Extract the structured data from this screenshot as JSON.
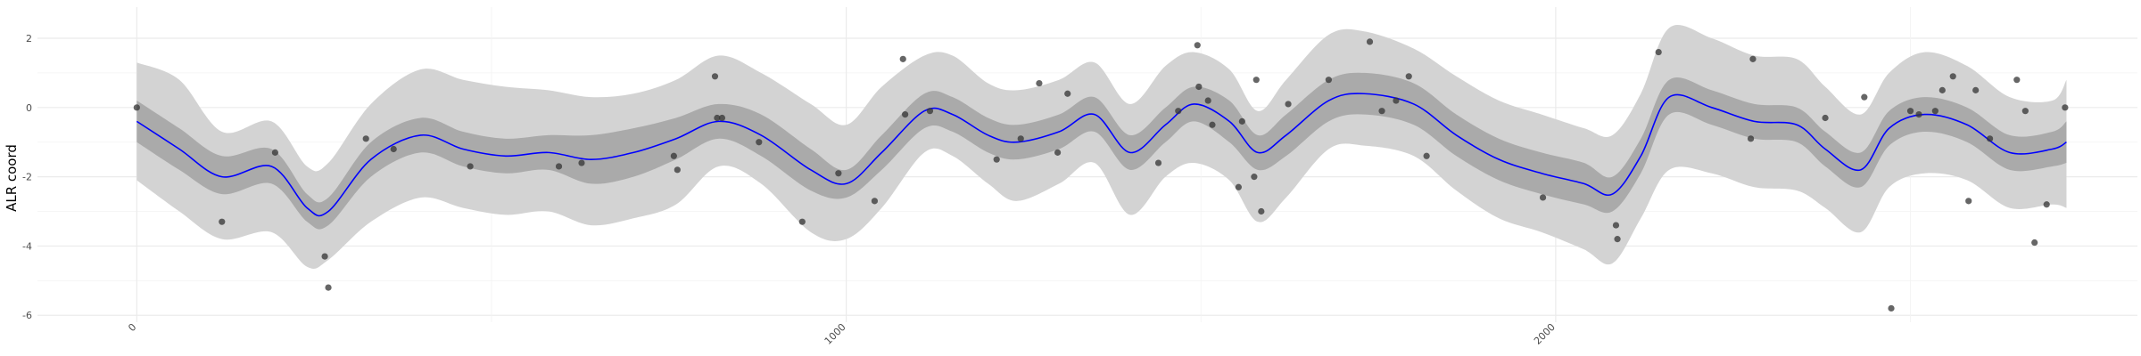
{
  "chart_data": {
    "type": "line",
    "title": "",
    "xlabel": "",
    "ylabel": "ALR coord",
    "xlim": [
      -140,
      2820
    ],
    "ylim": [
      -6.2,
      2.9
    ],
    "x_ticks": [
      0,
      1000,
      2000
    ],
    "x_tick_labels": [
      "0",
      "1000",
      "2000"
    ],
    "y_ticks": [
      -6,
      -4,
      -2,
      0,
      2
    ],
    "y_tick_labels": [
      "-6",
      "-4",
      "-2",
      "0",
      "2"
    ],
    "grid": true,
    "legend": "none",
    "colors": {
      "line": "#0000ff",
      "inner_band": "#aaaaaa",
      "outer_band": "#d3d3d3",
      "points": "#333333",
      "grid_major": "#ebebeb",
      "grid_minor": "#f3f3f3"
    },
    "fit": {
      "x": [
        0,
        60,
        120,
        190,
        240,
        270,
        330,
        400,
        460,
        520,
        580,
        640,
        700,
        760,
        820,
        880,
        950,
        1000,
        1050,
        1110,
        1150,
        1200,
        1240,
        1300,
        1350,
        1400,
        1450,
        1490,
        1540,
        1580,
        1620,
        1680,
        1730,
        1800,
        1860,
        1920,
        1980,
        2040,
        2080,
        2120,
        2160,
        2220,
        2280,
        2340,
        2380,
        2430,
        2470,
        2520,
        2580,
        2640,
        2700,
        2720
      ],
      "mean": [
        -0.4,
        -1.2,
        -2.0,
        -1.7,
        -2.9,
        -3.0,
        -1.5,
        -0.8,
        -1.2,
        -1.4,
        -1.3,
        -1.5,
        -1.3,
        -0.9,
        -0.4,
        -0.8,
        -1.8,
        -2.2,
        -1.3,
        -0.1,
        -0.2,
        -0.8,
        -1.0,
        -0.7,
        -0.2,
        -1.3,
        -0.5,
        0.1,
        -0.4,
        -1.3,
        -0.8,
        0.2,
        0.4,
        0.1,
        -0.8,
        -1.5,
        -1.9,
        -2.2,
        -2.5,
        -1.4,
        0.3,
        0.0,
        -0.4,
        -0.5,
        -1.2,
        -1.8,
        -0.6,
        -0.2,
        -0.5,
        -1.3,
        -1.2,
        -1.0
      ],
      "inner_lo": [
        -1.0,
        -1.8,
        -2.5,
        -2.2,
        -3.3,
        -3.4,
        -2.0,
        -1.3,
        -1.7,
        -1.9,
        -1.8,
        -2.2,
        -2.0,
        -1.5,
        -0.9,
        -1.4,
        -2.4,
        -2.6,
        -1.8,
        -0.6,
        -0.7,
        -1.3,
        -1.5,
        -1.2,
        -0.7,
        -1.8,
        -1.0,
        -0.4,
        -1.0,
        -1.8,
        -1.4,
        -0.4,
        -0.2,
        -0.5,
        -1.4,
        -2.1,
        -2.5,
        -2.8,
        -3.0,
        -1.9,
        -0.2,
        -0.5,
        -0.9,
        -1.0,
        -1.7,
        -2.3,
        -1.1,
        -0.7,
        -1.0,
        -1.8,
        -1.7,
        -1.6
      ],
      "inner_hi": [
        0.2,
        -0.6,
        -1.4,
        -1.2,
        -2.5,
        -2.6,
        -1.0,
        -0.3,
        -0.7,
        -0.9,
        -0.8,
        -0.8,
        -0.6,
        -0.3,
        0.1,
        -0.2,
        -1.2,
        -1.8,
        -0.8,
        0.4,
        0.3,
        -0.3,
        -0.5,
        -0.2,
        0.3,
        -0.8,
        0.0,
        0.6,
        0.2,
        -0.8,
        -0.2,
        0.8,
        1.0,
        0.7,
        -0.2,
        -0.9,
        -1.3,
        -1.6,
        -2.0,
        -0.9,
        0.8,
        0.5,
        0.1,
        0.0,
        -0.7,
        -1.3,
        -0.1,
        0.3,
        0.0,
        -0.8,
        -0.7,
        -0.4
      ],
      "outer_lo": [
        -2.1,
        -3.0,
        -3.8,
        -3.6,
        -4.6,
        -4.4,
        -3.3,
        -2.6,
        -2.9,
        -3.1,
        -3.0,
        -3.4,
        -3.2,
        -2.8,
        -1.7,
        -2.2,
        -3.6,
        -3.8,
        -2.9,
        -1.3,
        -1.4,
        -2.2,
        -2.7,
        -2.2,
        -1.6,
        -3.1,
        -2.0,
        -1.6,
        -2.1,
        -3.3,
        -2.6,
        -1.2,
        -1.1,
        -1.4,
        -2.4,
        -3.2,
        -3.6,
        -4.1,
        -4.5,
        -3.2,
        -1.8,
        -1.9,
        -2.3,
        -2.4,
        -2.9,
        -3.6,
        -2.3,
        -1.9,
        -2.1,
        -2.9,
        -2.8,
        -2.9
      ],
      "outer_hi": [
        1.3,
        0.8,
        -0.7,
        -0.4,
        -1.7,
        -1.6,
        0.1,
        1.1,
        0.8,
        0.6,
        0.5,
        0.3,
        0.4,
        0.8,
        1.5,
        1.0,
        0.1,
        -0.5,
        0.6,
        1.5,
        1.5,
        0.7,
        0.5,
        0.8,
        1.3,
        0.1,
        1.2,
        1.6,
        1.1,
        -0.1,
        0.8,
        2.1,
        2.2,
        1.7,
        0.9,
        0.2,
        -0.2,
        -0.6,
        -0.8,
        0.4,
        2.3,
        2.0,
        1.5,
        1.4,
        0.6,
        -0.2,
        1.0,
        1.6,
        1.2,
        0.3,
        0.2,
        0.8
      ]
    },
    "points": [
      {
        "x": 0,
        "y": 0.0
      },
      {
        "x": 120,
        "y": -3.3
      },
      {
        "x": 195,
        "y": -1.3
      },
      {
        "x": 265,
        "y": -4.3
      },
      {
        "x": 270,
        "y": -5.2
      },
      {
        "x": 323,
        "y": -0.9
      },
      {
        "x": 362,
        "y": -1.2
      },
      {
        "x": 470,
        "y": -1.7
      },
      {
        "x": 595,
        "y": -1.7
      },
      {
        "x": 627,
        "y": -1.6
      },
      {
        "x": 757,
        "y": -1.4
      },
      {
        "x": 762,
        "y": -1.8
      },
      {
        "x": 815,
        "y": 0.9
      },
      {
        "x": 818,
        "y": -0.3
      },
      {
        "x": 825,
        "y": -0.3
      },
      {
        "x": 877,
        "y": -1.0
      },
      {
        "x": 938,
        "y": -3.3
      },
      {
        "x": 989,
        "y": -1.9
      },
      {
        "x": 1040,
        "y": -2.7
      },
      {
        "x": 1080,
        "y": 1.4
      },
      {
        "x": 1083,
        "y": -0.2
      },
      {
        "x": 1118,
        "y": -0.1
      },
      {
        "x": 1212,
        "y": -1.5
      },
      {
        "x": 1246,
        "y": -0.9
      },
      {
        "x": 1272,
        "y": 0.7
      },
      {
        "x": 1298,
        "y": -1.3
      },
      {
        "x": 1312,
        "y": 0.4
      },
      {
        "x": 1440,
        "y": -1.6
      },
      {
        "x": 1468,
        "y": -0.1
      },
      {
        "x": 1495,
        "y": 1.8
      },
      {
        "x": 1497,
        "y": 0.6
      },
      {
        "x": 1510,
        "y": 0.2
      },
      {
        "x": 1516,
        "y": -0.5
      },
      {
        "x": 1553,
        "y": -2.3
      },
      {
        "x": 1558,
        "y": -0.4
      },
      {
        "x": 1575,
        "y": -2.0
      },
      {
        "x": 1578,
        "y": 0.8
      },
      {
        "x": 1585,
        "y": -3.0
      },
      {
        "x": 1623,
        "y": 0.1
      },
      {
        "x": 1680,
        "y": 0.8
      },
      {
        "x": 1738,
        "y": 1.9
      },
      {
        "x": 1755,
        "y": -0.1
      },
      {
        "x": 1775,
        "y": 0.2
      },
      {
        "x": 1793,
        "y": 0.9
      },
      {
        "x": 1818,
        "y": -1.4
      },
      {
        "x": 1982,
        "y": -2.6
      },
      {
        "x": 2085,
        "y": -3.4
      },
      {
        "x": 2087,
        "y": -3.8
      },
      {
        "x": 2145,
        "y": 1.6
      },
      {
        "x": 2275,
        "y": -0.9
      },
      {
        "x": 2278,
        "y": 1.4
      },
      {
        "x": 2380,
        "y": -0.3
      },
      {
        "x": 2435,
        "y": 0.3
      },
      {
        "x": 2473,
        "y": -5.8
      },
      {
        "x": 2500,
        "y": -0.1
      },
      {
        "x": 2512,
        "y": -0.2
      },
      {
        "x": 2535,
        "y": -0.1
      },
      {
        "x": 2545,
        "y": 0.5
      },
      {
        "x": 2560,
        "y": 0.9
      },
      {
        "x": 2582,
        "y": -2.7
      },
      {
        "x": 2592,
        "y": 0.5
      },
      {
        "x": 2612,
        "y": -0.9
      },
      {
        "x": 2650,
        "y": 0.8
      },
      {
        "x": 2662,
        "y": -0.1
      },
      {
        "x": 2675,
        "y": -3.9
      },
      {
        "x": 2692,
        "y": -2.8
      },
      {
        "x": 2718,
        "y": 0.0
      }
    ]
  }
}
